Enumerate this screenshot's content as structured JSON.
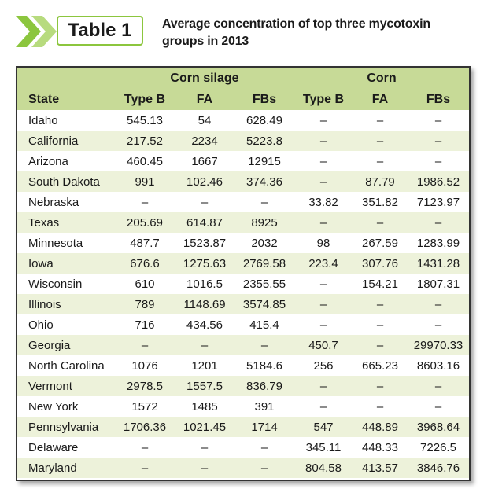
{
  "header": {
    "label": "Table 1",
    "title": "Average concentration of top three mycotoxin groups in 2013"
  },
  "table": {
    "group_headers": [
      "Corn silage",
      "Corn"
    ],
    "columns": [
      "State",
      "Type B",
      "FA",
      "FBs",
      "Type B",
      "FA",
      "FBs"
    ],
    "rows": [
      [
        "Idaho",
        "545.13",
        "54",
        "628.49",
        "–",
        "–",
        "–"
      ],
      [
        "California",
        "217.52",
        "2234",
        "5223.8",
        "–",
        "–",
        "–"
      ],
      [
        "Arizona",
        "460.45",
        "1667",
        "12915",
        "–",
        "–",
        "–"
      ],
      [
        "South Dakota",
        "991",
        "102.46",
        "374.36",
        "–",
        "87.79",
        "1986.52"
      ],
      [
        "Nebraska",
        "–",
        "–",
        "–",
        "33.82",
        "351.82",
        "7123.97"
      ],
      [
        "Texas",
        "205.69",
        "614.87",
        "8925",
        "–",
        "–",
        "–"
      ],
      [
        "Minnesota",
        "487.7",
        "1523.87",
        "2032",
        "98",
        "267.59",
        "1283.99"
      ],
      [
        "Iowa",
        "676.6",
        "1275.63",
        "2769.58",
        "223.4",
        "307.76",
        "1431.28"
      ],
      [
        "Wisconsin",
        "610",
        "1016.5",
        "2355.55",
        "–",
        "154.21",
        "1807.31"
      ],
      [
        "Illinois",
        "789",
        "1148.69",
        "3574.85",
        "–",
        "–",
        "–"
      ],
      [
        "Ohio",
        "716",
        "434.56",
        "415.4",
        "–",
        "–",
        "–"
      ],
      [
        "Georgia",
        "–",
        "–",
        "–",
        "450.7",
        "–",
        "29970.33"
      ],
      [
        "North Carolina",
        "1076",
        "1201",
        "5184.6",
        "256",
        "665.23",
        "8603.16"
      ],
      [
        "Vermont",
        "2978.5",
        "1557.5",
        "836.79",
        "–",
        "–",
        "–"
      ],
      [
        "New York",
        "1572",
        "1485",
        "391",
        "–",
        "–",
        "–"
      ],
      [
        "Pennsylvania",
        "1706.36",
        "1021.45",
        "1714",
        "547",
        "448.89",
        "3968.64"
      ],
      [
        "Delaware",
        "–",
        "–",
        "–",
        "345.11",
        "448.33",
        "7226.5"
      ],
      [
        "Maryland",
        "–",
        "–",
        "–",
        "804.58",
        "413.57",
        "3846.76"
      ]
    ]
  }
}
